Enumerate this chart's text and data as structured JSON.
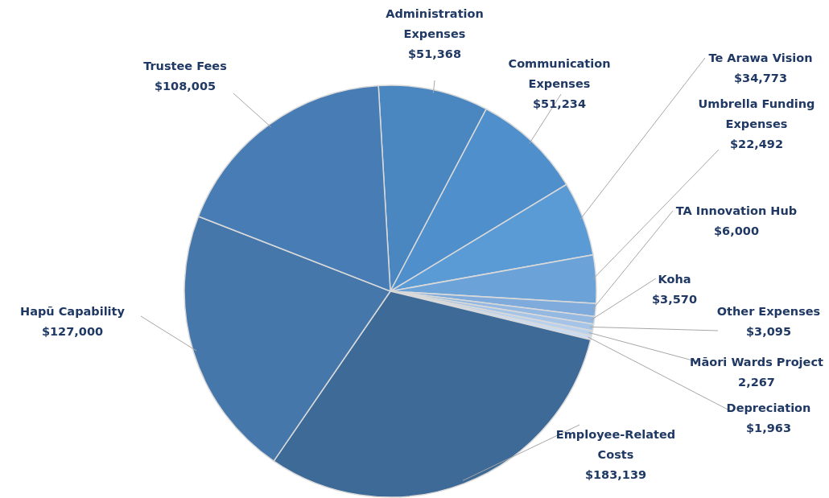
{
  "chart_data": {
    "type": "pie",
    "categories": [
      "Administration Expenses",
      "Communication Expenses",
      "Te Arawa Vision",
      "Umbrella Funding Expenses",
      "TA Innovation Hub",
      "Koha",
      "Other Expenses",
      "Māori Wards Project",
      "Depreciation",
      "Employee-Related Costs",
      "Hapū Capability",
      "Trustee Fees"
    ],
    "values": [
      51368,
      51234,
      34773,
      22492,
      6000,
      3570,
      3095,
      2267,
      1963,
      183139,
      127000,
      108005
    ],
    "value_labels": [
      "$51,368",
      "$51,234",
      "$34,773",
      "$22,492",
      "$6,000",
      "$3,570",
      "$3,095",
      "2,267",
      "$1,963",
      "$183,139",
      "$127,000",
      "$108,005"
    ],
    "colors": [
      "#4a86c0",
      "#4f8fcb",
      "#5a9ad5",
      "#6ba2d8",
      "#7eabdc",
      "#93b8e1",
      "#a6c4e7",
      "#b9d1ec",
      "#cadcf1",
      "#3e6a97",
      "#4677ab",
      "#477db4"
    ]
  }
}
